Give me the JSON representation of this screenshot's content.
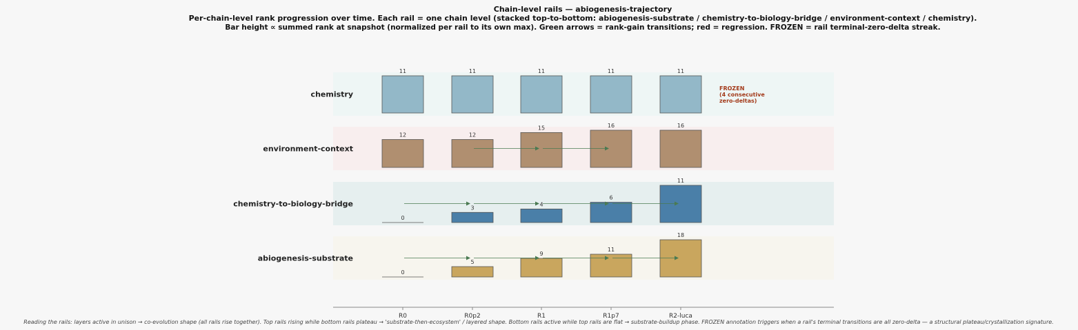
{
  "title_lines": [
    "Chain-level rails — abiogenesis-trajectory",
    "Per-chain-level rank progression over time. Each rail = one chain level (stacked top-to-bottom: abiogenesis-substrate / chemistry-to-biology-bridge / environment-context / chemistry).",
    "Bar height ∝ summed rank at snapshot (normalized per rail to its own max). Green arrows = rank-gain transitions; red = regression. FROZEN = rail terminal-zero-delta streak."
  ],
  "footnote": "Reading the rails: layers active in unison → co-evolution shape (all rails rise together).  Top rails rising while bottom rails plateau → 'substrate-then-ecosystem' / layered shape.  Bottom rails active while top rails are flat → substrate-buildup phase. FROZEN annotation triggers when a rail's terminal transitions are all zero-delta — a structural plateau/crystallization signature.",
  "chart_data": {
    "type": "bar",
    "layout": "stacked rails (small multiples), one rail per chain level",
    "categories": [
      "R0",
      "R0p2",
      "R1",
      "R1p7",
      "R2-luca"
    ],
    "normalization": "per rail to its own max",
    "grid": false,
    "series": [
      {
        "name": "chemistry",
        "values": [
          11,
          11,
          11,
          11,
          11
        ],
        "color": "#93b8c8",
        "rail_bg": "#eef6f5",
        "frozen": true,
        "frozen_label": [
          "FROZEN",
          "(4 consecutive",
          "zero-deltas)"
        ],
        "gain_arrows": []
      },
      {
        "name": "environment-context",
        "values": [
          12,
          12,
          15,
          16,
          16
        ],
        "color": "#b08f70",
        "rail_bg": "#f8eeee",
        "frozen": false,
        "gain_arrows": [
          [
            1,
            2
          ],
          [
            2,
            3
          ]
        ]
      },
      {
        "name": "chemistry-to-biology-bridge",
        "values": [
          0,
          3,
          4,
          6,
          11
        ],
        "color": "#4a7fa8",
        "rail_bg": "#e6efef",
        "frozen": false,
        "gain_arrows": [
          [
            0,
            1
          ],
          [
            1,
            2
          ],
          [
            2,
            3
          ],
          [
            3,
            4
          ]
        ]
      },
      {
        "name": "abiogenesis-substrate",
        "values": [
          0,
          5,
          9,
          11,
          18
        ],
        "color": "#c9a65e",
        "rail_bg": "#f7f5ee",
        "frozen": false,
        "gain_arrows": [
          [
            0,
            1
          ],
          [
            1,
            2
          ],
          [
            2,
            3
          ],
          [
            3,
            4
          ]
        ]
      }
    ],
    "colors": {
      "gain_arrow": "#4a7a52",
      "regression_arrow": "#c0392b",
      "frozen_text": "#a33a1a",
      "bar_edge": "#555555",
      "axis": "#888888"
    }
  }
}
